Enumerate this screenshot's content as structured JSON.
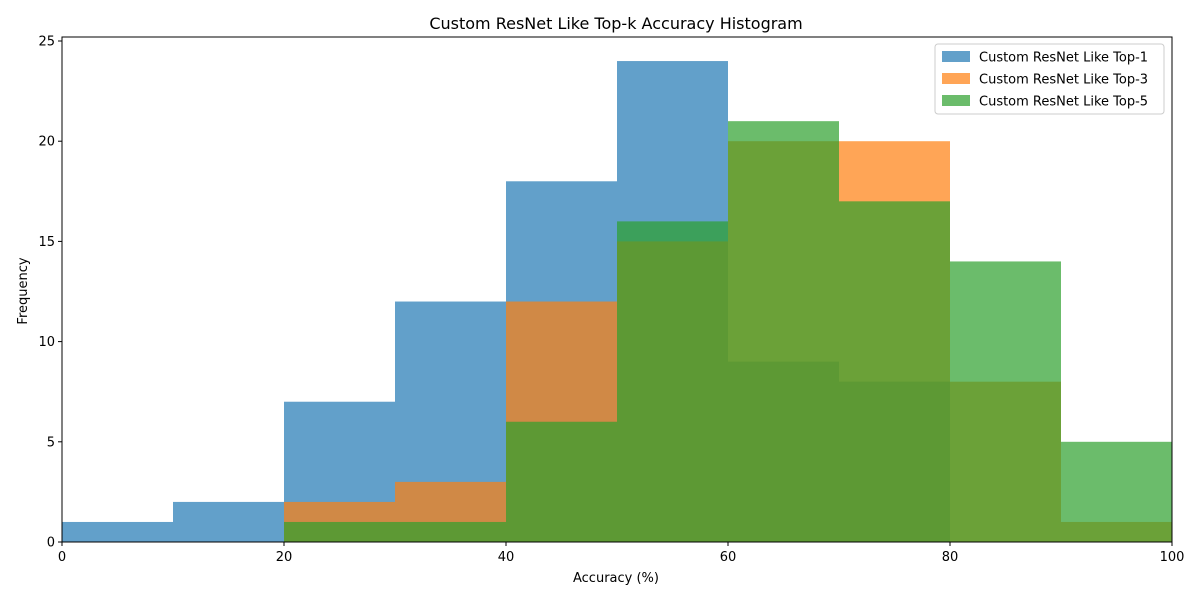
{
  "chart_data": {
    "type": "bar",
    "subtype": "histogram",
    "title": "Custom ResNet Like Top-k Accuracy Histogram",
    "xlabel": "Accuracy (%)",
    "ylabel": "Frequency",
    "xlim": [
      0,
      100
    ],
    "ylim": [
      0,
      25.2
    ],
    "xticks": [
      0,
      20,
      40,
      60,
      80,
      100
    ],
    "yticks": [
      0,
      5,
      10,
      15,
      20,
      25
    ],
    "bin_edges": [
      0,
      10,
      20,
      30,
      40,
      50,
      60,
      70,
      80,
      90,
      100
    ],
    "legend_position": "top-right",
    "grid": false,
    "series": [
      {
        "name": "Custom ResNet Like Top-1",
        "color": "#1f77b4",
        "alpha": 0.7,
        "values": [
          1,
          2,
          7,
          12,
          18,
          24,
          9,
          8,
          0,
          0
        ]
      },
      {
        "name": "Custom ResNet Like Top-3",
        "color": "#ff7f0e",
        "alpha": 0.7,
        "values": [
          0,
          0,
          2,
          3,
          12,
          15,
          20,
          20,
          8,
          1
        ]
      },
      {
        "name": "Custom ResNet Like Top-5",
        "color": "#2ca02c",
        "alpha": 0.7,
        "values": [
          0,
          0,
          1,
          1,
          6,
          16,
          21,
          17,
          14,
          5
        ]
      }
    ]
  }
}
